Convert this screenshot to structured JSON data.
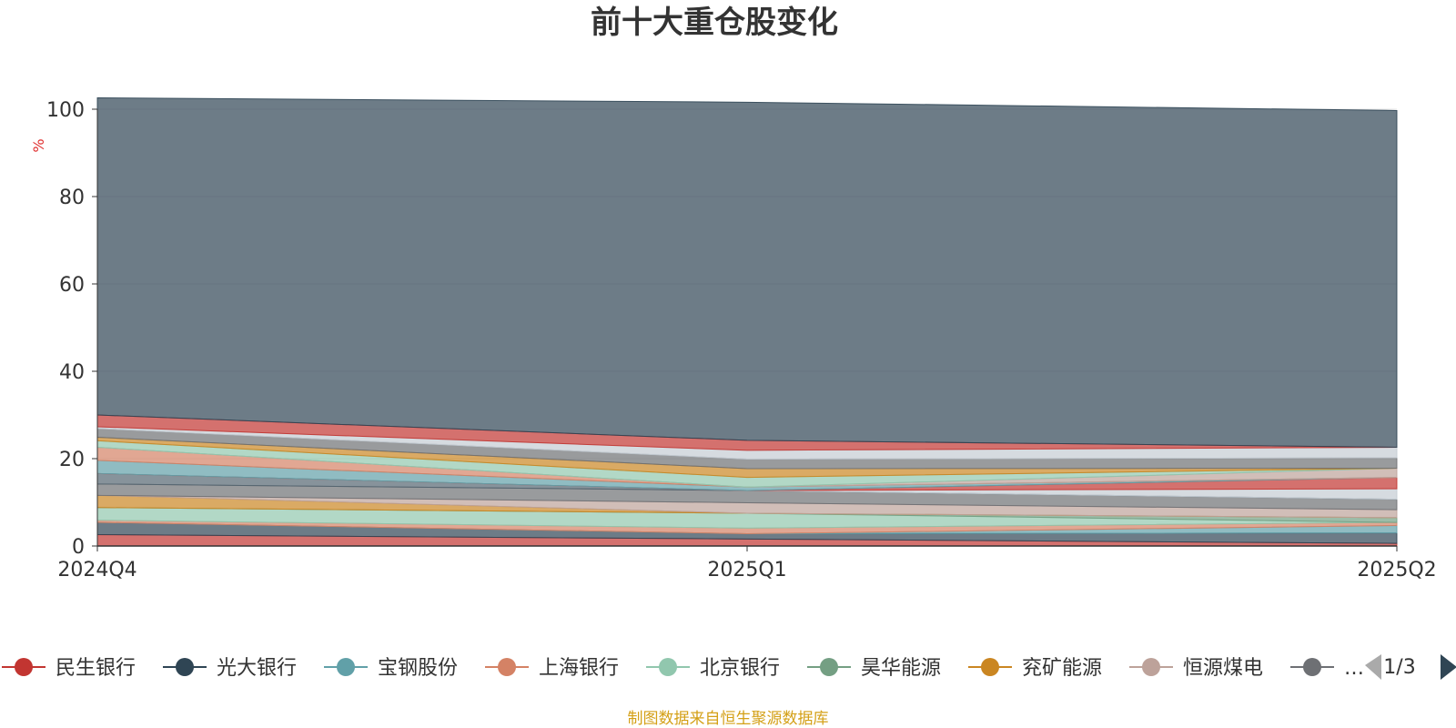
{
  "chart_data": {
    "type": "area",
    "stacked": true,
    "title": "前十大重仓股变化",
    "ylabel": "%",
    "ylim": [
      0,
      100
    ],
    "yticks": [
      0,
      20,
      40,
      60,
      80,
      100
    ],
    "categories": [
      "2024Q4",
      "2025Q1",
      "2025Q2"
    ],
    "series": [
      {
        "name": "民生银行",
        "color": "#c23531",
        "values": [
          2.6,
          1.6,
          0.6
        ]
      },
      {
        "name": "光大银行",
        "color": "#2f4554",
        "values": [
          2.8,
          1.2,
          2.4
        ]
      },
      {
        "name": "宝钢股份",
        "color": "#61a0a8",
        "values": [
          0.0,
          0.0,
          1.7
        ]
      },
      {
        "name": "上海银行",
        "color": "#d48265",
        "values": [
          0.5,
          1.3,
          0.7
        ]
      },
      {
        "name": "北京银行",
        "color": "#91c7ae",
        "values": [
          2.9,
          3.4,
          0.0
        ]
      },
      {
        "name": "昊华能源",
        "color": "#749f83",
        "values": [
          0.0,
          0.0,
          1.1
        ]
      },
      {
        "name": "兖矿能源",
        "color": "#ca8622",
        "values": [
          2.8,
          0.0,
          0.0
        ]
      },
      {
        "name": "恒源煤电",
        "color": "#bda29a",
        "values": [
          0.0,
          2.4,
          1.8
        ]
      },
      {
        "name": "",
        "color": "#6e7074",
        "values": [
          2.6,
          2.8,
          2.4
        ]
      },
      {
        "name": "",
        "color": "#546570",
        "values": [
          2.4,
          0.0,
          0.0
        ]
      },
      {
        "name": "",
        "color": "#c4ccd3",
        "values": [
          0.0,
          0.0,
          2.4
        ]
      },
      {
        "name": "",
        "color": "#c23531",
        "values": [
          0.0,
          0.0,
          2.6
        ]
      },
      {
        "name": "",
        "color": "#61a0a8",
        "values": [
          3.0,
          0.8,
          0.0
        ]
      },
      {
        "name": "",
        "color": "#d48265",
        "values": [
          3.0,
          0.0,
          0.0
        ]
      },
      {
        "name": "",
        "color": "#bda29a",
        "values": [
          0.0,
          0.0,
          2.1
        ]
      },
      {
        "name": "",
        "color": "#91c7ae",
        "values": [
          1.5,
          2.2,
          0.0
        ]
      },
      {
        "name": "",
        "color": "#ca8622",
        "values": [
          0.8,
          2.0,
          0.0
        ]
      },
      {
        "name": "",
        "color": "#6e7074",
        "values": [
          2.0,
          2.2,
          2.4
        ]
      },
      {
        "name": "",
        "color": "#c4ccd3",
        "values": [
          0.4,
          2.0,
          2.4
        ]
      },
      {
        "name": "",
        "color": "#c23531",
        "values": [
          2.7,
          2.3,
          0.0
        ]
      },
      {
        "name": "",
        "color": "#2f4554",
        "values": [
          72.6,
          77.4,
          77.1
        ]
      }
    ]
  },
  "legend": {
    "visible_items": [
      "民生银行",
      "光大银行",
      "宝钢股份",
      "上海银行",
      "北京银行",
      "昊华能源",
      "兖矿能源",
      "恒源煤电",
      "…"
    ],
    "page": "1/3"
  },
  "source_text": "制图数据来自恒生聚源数据库"
}
